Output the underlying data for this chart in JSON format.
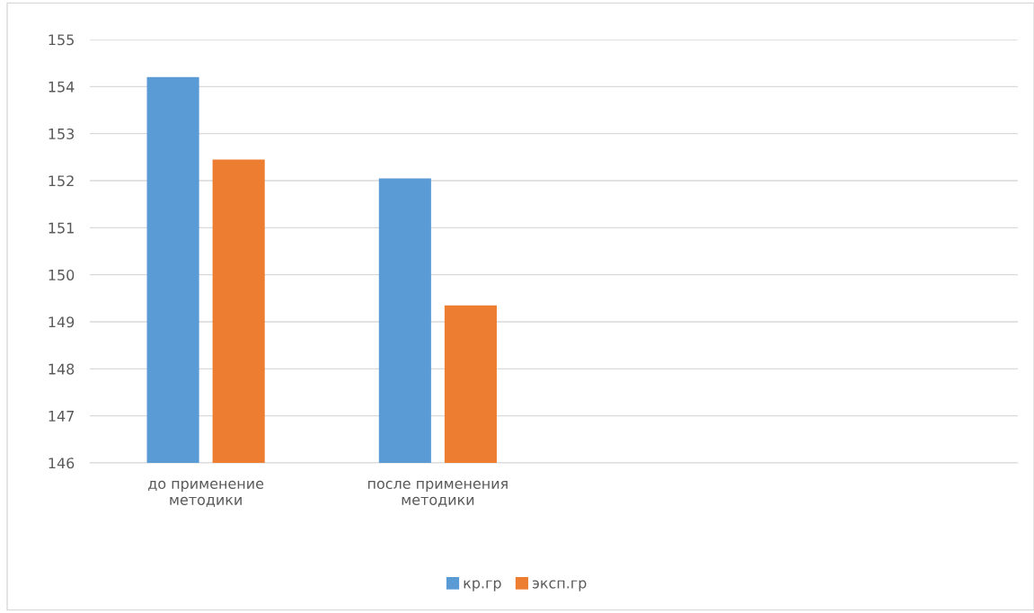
{
  "chart_data": {
    "type": "bar",
    "categories": [
      "до применение\nметодики",
      "после применения\nметодики",
      null,
      null
    ],
    "series": [
      {
        "name": "кр.гр",
        "color": "#5b9bd5",
        "values": [
          154.2,
          152.05,
          null,
          null
        ]
      },
      {
        "name": "эксп.гр",
        "color": "#ed7d31",
        "values": [
          152.45,
          149.35,
          null,
          null
        ]
      }
    ],
    "ylim": [
      146,
      155
    ],
    "yticks": [
      146,
      147,
      148,
      149,
      150,
      151,
      152,
      153,
      154,
      155
    ],
    "grid": "y",
    "legend": "bottom"
  }
}
